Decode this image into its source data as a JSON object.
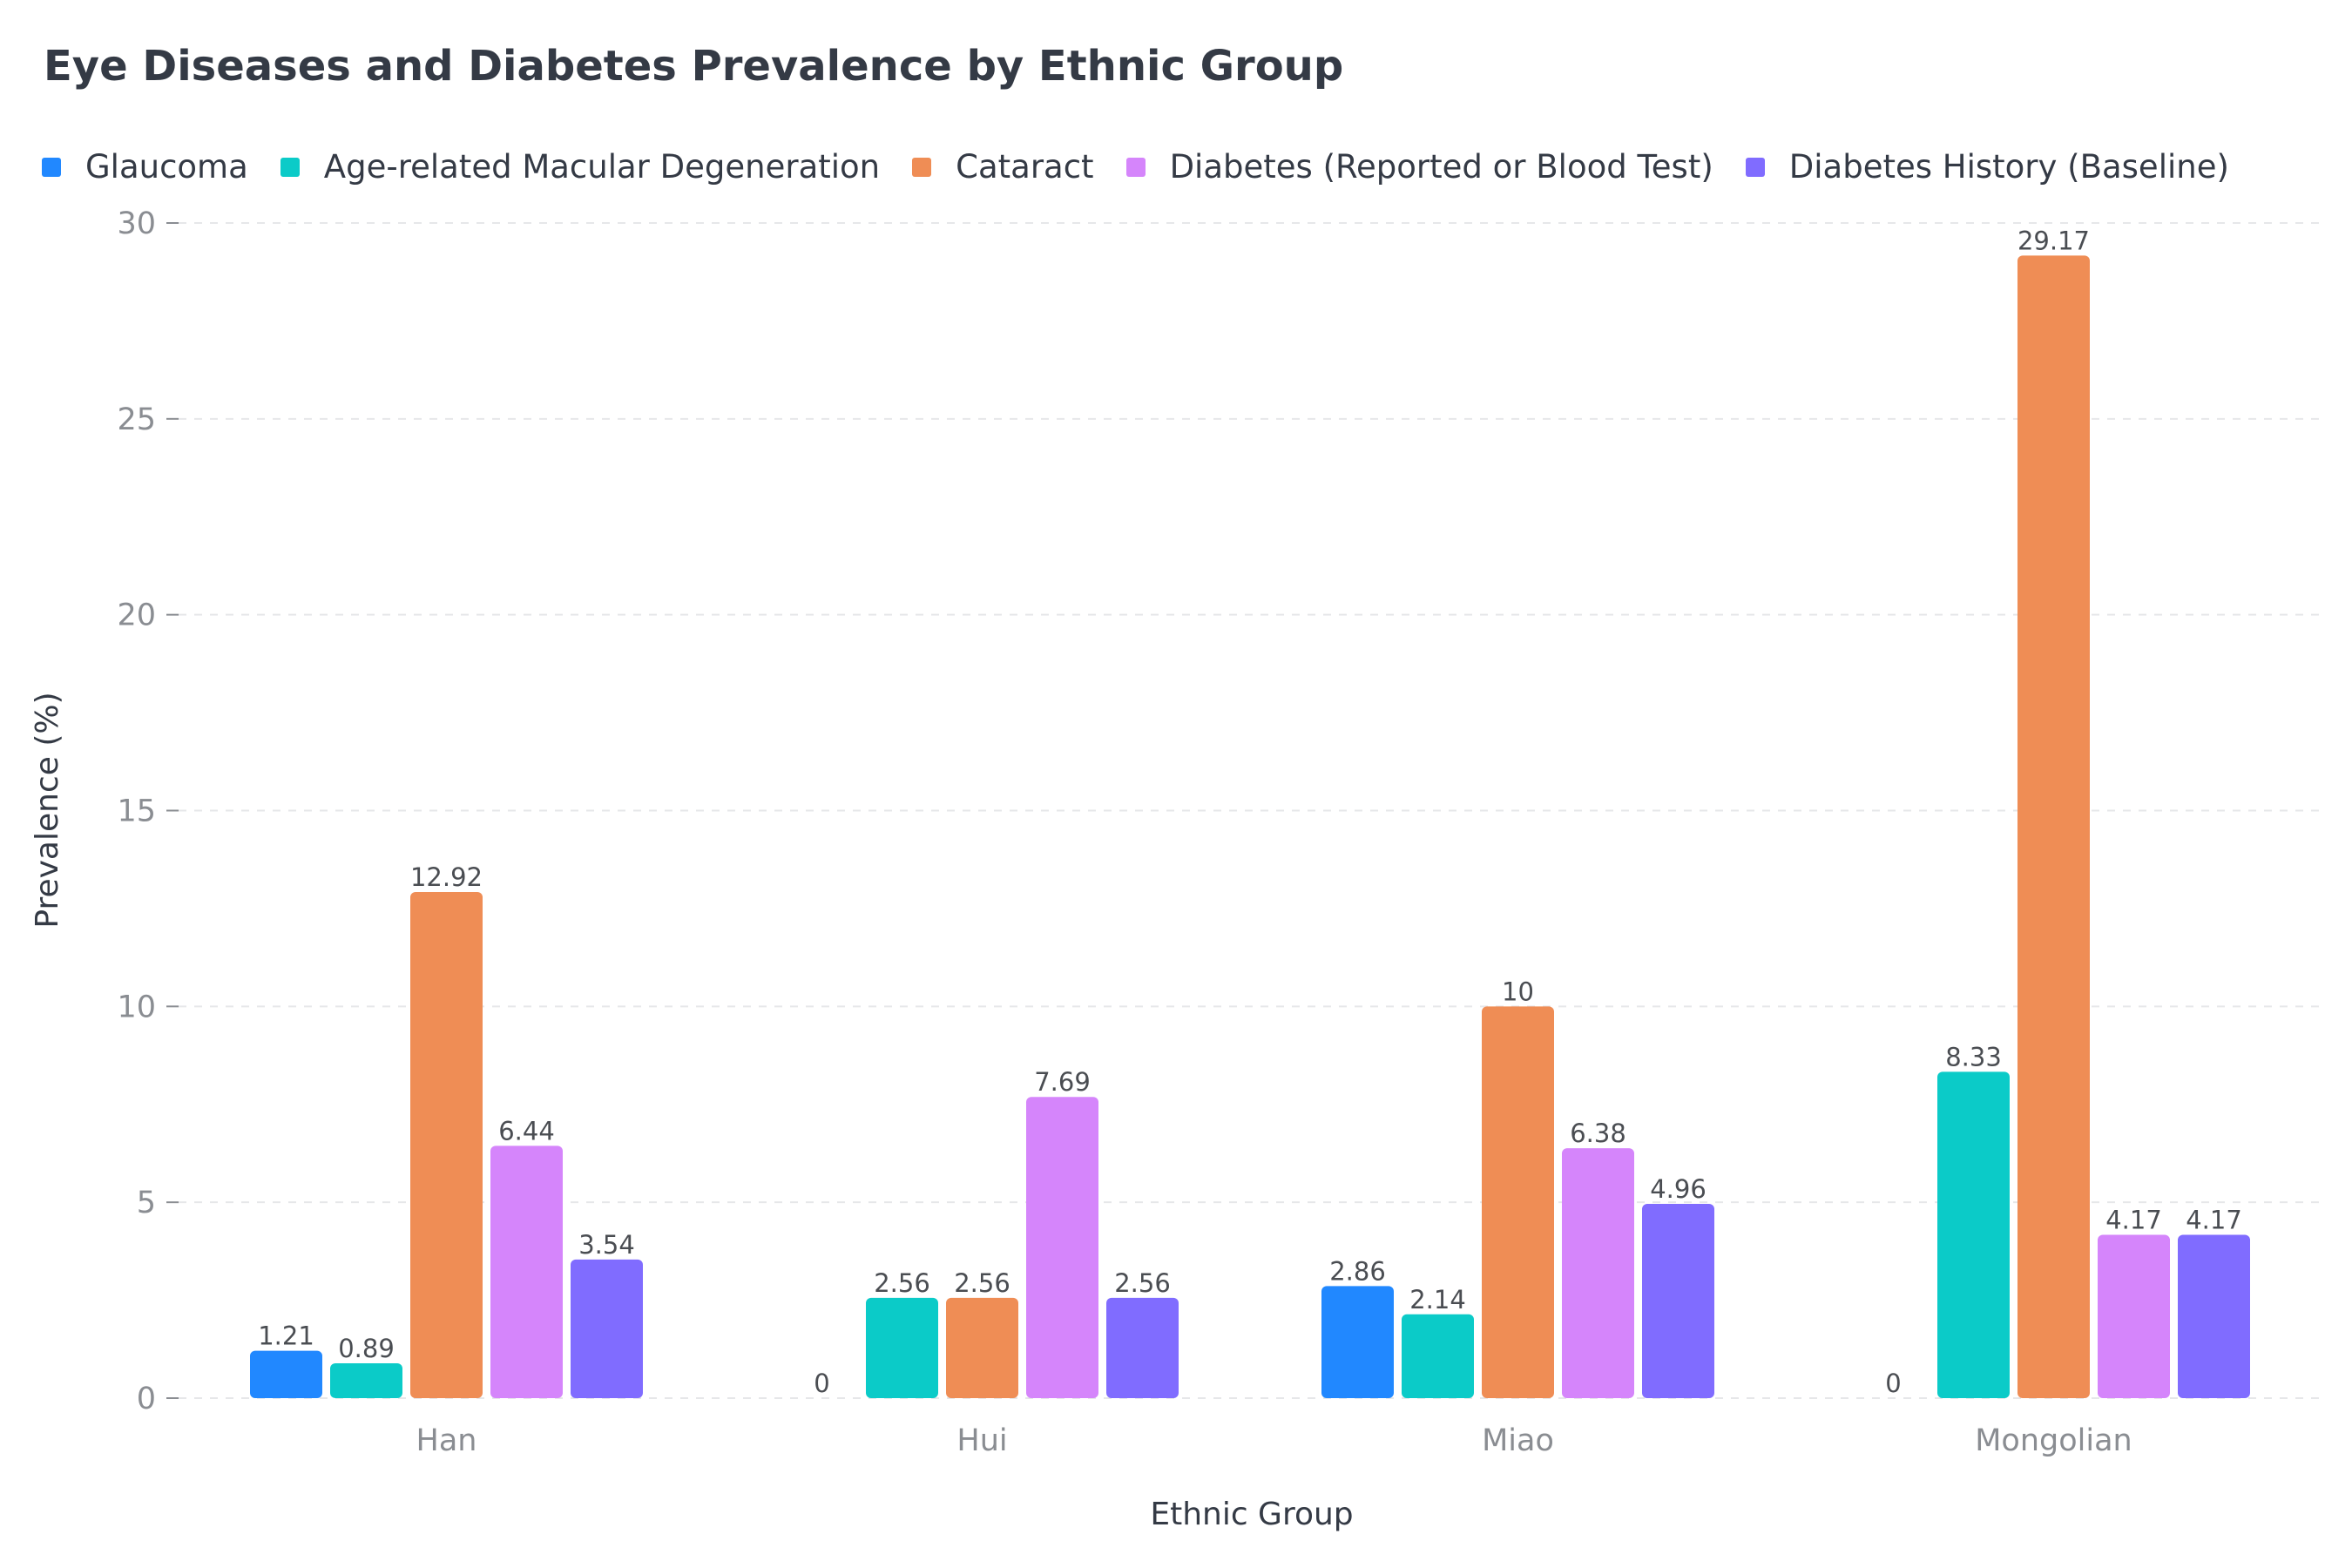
{
  "chart_data": {
    "type": "bar",
    "title": "Eye Diseases and Diabetes Prevalence by Ethnic Group",
    "xlabel": "Ethnic Group",
    "ylabel": "Prevalence (%)",
    "ylim": [
      0,
      30
    ],
    "yticks": [
      "0",
      "5",
      "10",
      "15",
      "20",
      "25",
      "30"
    ],
    "grid": true,
    "legend_position": "top-left",
    "categories": [
      "Han",
      "Hui",
      "Miao",
      "Mongolian"
    ],
    "series": [
      {
        "name": "Glaucoma",
        "color": "#2188ff",
        "values": [
          1.21,
          0,
          2.86,
          0
        ],
        "labels": [
          "1.21",
          "0",
          "2.86",
          "0"
        ]
      },
      {
        "name": "Age-related Macular Degeneration",
        "color": "#0bcbc8",
        "values": [
          0.89,
          2.56,
          2.14,
          8.33
        ],
        "labels": [
          "0.89",
          "2.56",
          "2.14",
          "8.33"
        ]
      },
      {
        "name": "Cataract",
        "color": "#ef8d55",
        "values": [
          12.92,
          2.56,
          10,
          29.17
        ],
        "labels": [
          "12.92",
          "2.56",
          "10",
          "29.17"
        ]
      },
      {
        "name": "Diabetes (Reported or Blood Test)",
        "color": "#d585fb",
        "values": [
          6.44,
          7.69,
          6.38,
          4.17
        ],
        "labels": [
          "6.44",
          "7.69",
          "6.38",
          "4.17"
        ]
      },
      {
        "name": "Diabetes History (Baseline)",
        "color": "#806cff",
        "values": [
          3.54,
          2.56,
          4.96,
          4.17
        ],
        "labels": [
          "3.54",
          "2.56",
          "4.96",
          "4.17"
        ]
      }
    ]
  }
}
